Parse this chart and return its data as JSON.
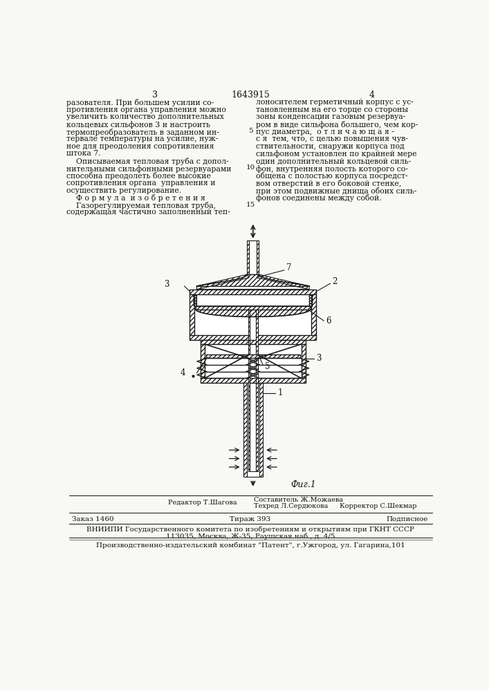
{
  "page_number_left": "3",
  "patent_number": "1643915",
  "page_number_right": "4",
  "left_text": [
    "разователя. При большем усилии со-",
    "противления органа управления можно",
    "увеличить количество дополнительных",
    "кольцевых сильфонов 3 и настроить",
    "термопреобразователь в заданном ин-",
    "тервале температуры на усилие, нуж-",
    "ное для преодоления сопротивления",
    "штока 7.",
    "    Описываемая тепловая труба с допол-",
    "нительными сильфонными резервуарами",
    "способна преодолеть более высокие",
    "сопротивления органа  управления и",
    "осуществить регулирование.",
    "    Ф о р м у л а  и з о б р е т е н и я",
    "    Газорегулируемая тепловая труба,",
    "содержащая частично заполненный теп-"
  ],
  "right_text": [
    "лоносителем герметичный корпус с ус-",
    "тановленным на его торце со стороны",
    "зоны конденсации газовым резервуа-",
    "ром в виде сильфона большего, чем кор-",
    "пус диаметра,  о т л и ч а ю щ а я -",
    "с я  тем, что, с целью повышения чув-",
    "ствительности, снаружи корпуса под",
    "сильфоном установлен по крайней мере",
    "один дополнительный кольцевой силь-",
    "фон, внутренняя полость которого со-",
    "общена с полостью корпуса посредст-",
    "вом отверстий в его боковой стенке,",
    "при этом подвижные днища обоих силь-",
    "фонов соединены между собой."
  ],
  "bottom_left": "Редактор Т.Шагова",
  "bottom_center1": "Составитель Ж.Можаева",
  "bottom_center2": "Техред Л.Сердюкова",
  "bottom_center3": "Корректор С.Шекмар",
  "bottom_order": "Заказ 1460",
  "bottom_tirazh": "Тираж 393",
  "bottom_podp": "Подписное",
  "bottom_vniipи": "ВНИИПИ Государственного комитета по изобретениям и открытиям при ГКНТ СССР",
  "bottom_address": "113035, Москва, Ж-35, Раушская наб., д. 4/5",
  "bottom_final": "Производственно-издательский комбинат \"Патент\", г.Ужгород, ул. Гагарина,101",
  "fig_label": "Фиг.1",
  "bg_color": "#f8f8f4",
  "text_color": "#111111",
  "drawing_color": "#1a1a1a"
}
